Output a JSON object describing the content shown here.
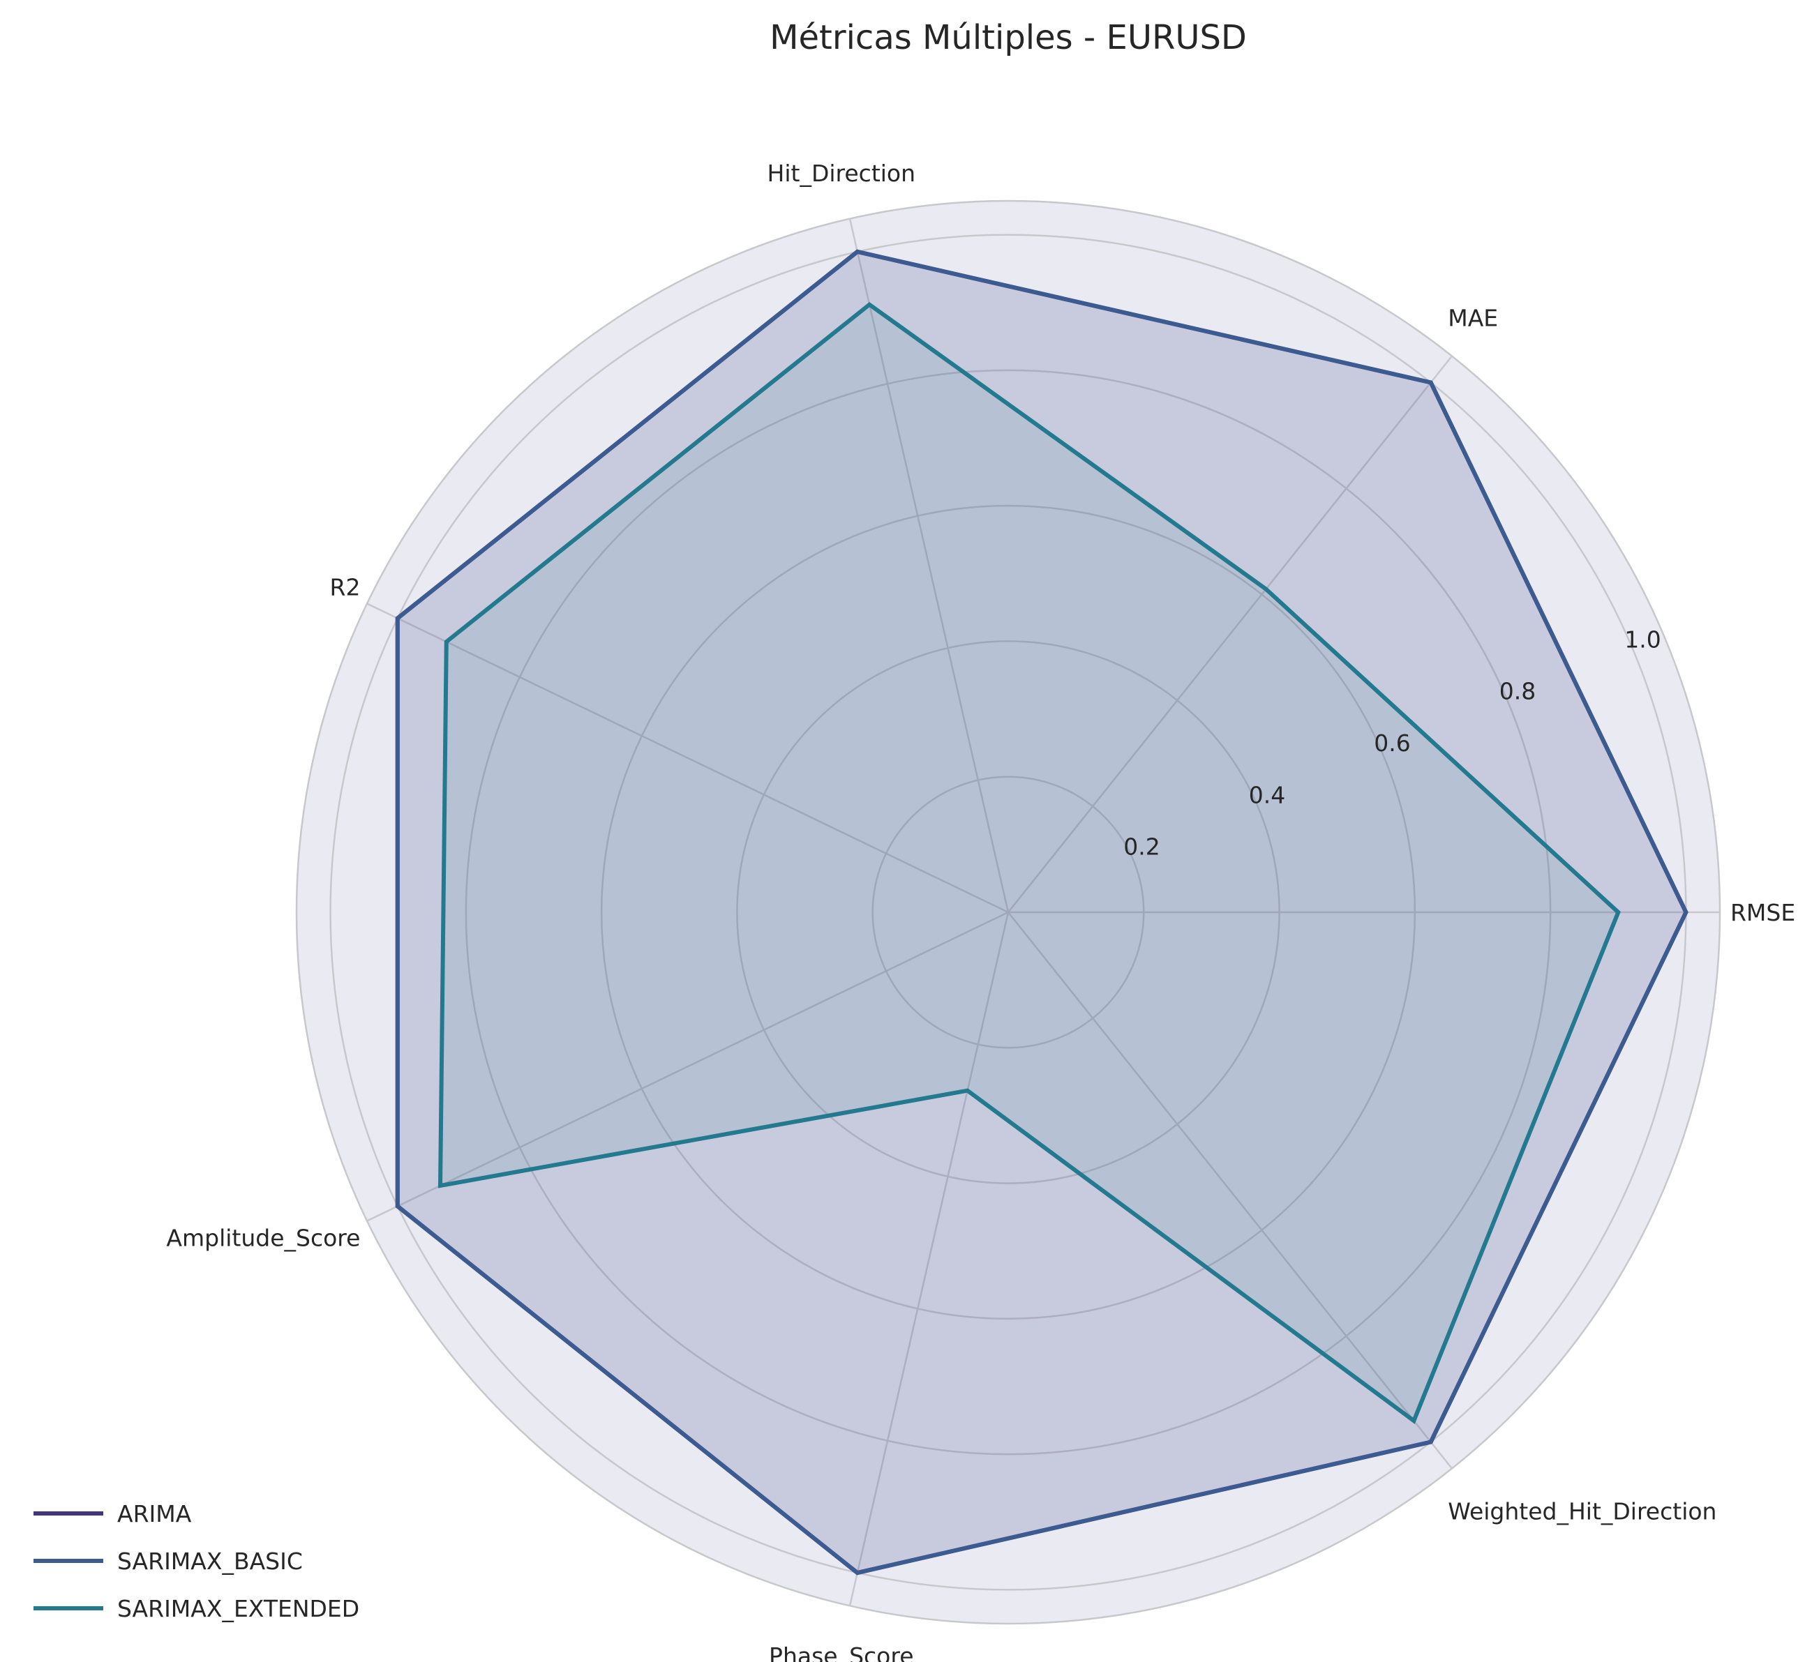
{
  "chart_data": {
    "type": "radar",
    "title": "Métricas Múltiples - EURUSD",
    "axes": [
      "RMSE",
      "MAE",
      "Hit_Direction",
      "R2",
      "Amplitude_Score",
      "Phase_Score",
      "Weighted_Hit_Direction"
    ],
    "rlim": [
      0,
      1.05
    ],
    "rticks": [
      0.2,
      0.4,
      0.6,
      0.8,
      1.0
    ],
    "rtick_labels": [
      "0.2",
      "0.4",
      "0.6",
      "0.8",
      "1.0"
    ],
    "grid": true,
    "legend_position": "lower-left",
    "series": [
      {
        "name": "ARIMA",
        "color": "#44357c",
        "values": [
          1.0,
          1.0,
          1.0,
          1.0,
          1.0,
          1.0,
          1.0
        ]
      },
      {
        "name": "SARIMAX_BASIC",
        "color": "#3b5b91",
        "values": [
          1.0,
          1.0,
          1.0,
          1.0,
          1.0,
          1.0,
          1.0
        ]
      },
      {
        "name": "SARIMAX_EXTENDED",
        "color": "#23798e",
        "values": [
          0.9,
          0.61,
          0.92,
          0.92,
          0.93,
          0.27,
          0.96
        ]
      }
    ]
  }
}
